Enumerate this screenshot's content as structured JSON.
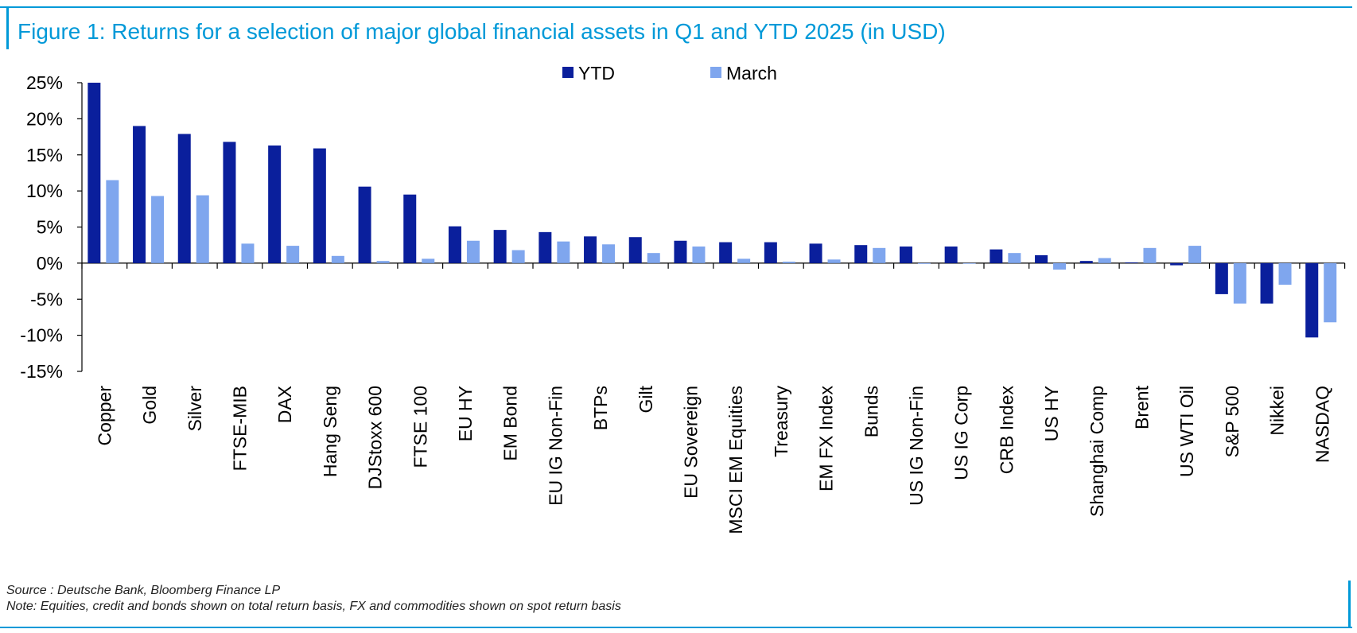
{
  "title": "Figure 1: Returns for a selection of major global financial assets in Q1 and YTD 2025 (in USD)",
  "source": "Source : Deutsche Bank, Bloomberg Finance LP",
  "note": "Note: Equities, credit and bonds shown on total return basis, FX and commodities shown on spot return basis",
  "colors": {
    "accent": "#0099d8",
    "ytd": "#0a1f9c",
    "march": "#7fa6ee"
  },
  "chart_data": {
    "type": "bar",
    "title": "",
    "xlabel": "",
    "ylabel": "",
    "ylim": [
      -15,
      25
    ],
    "yticks": [
      25,
      20,
      15,
      10,
      5,
      0,
      -5,
      -10,
      -15
    ],
    "ytick_labels": [
      "25%",
      "20%",
      "15%",
      "10%",
      "5%",
      "0%",
      "-5%",
      "-10%",
      "-15%"
    ],
    "legend_position": "top-center",
    "grid": false,
    "categories": [
      "Copper",
      "Gold",
      "Silver",
      "FTSE-MIB",
      "DAX",
      "Hang Seng",
      "DJStoxx 600",
      "FTSE 100",
      "EU HY",
      "EM Bond",
      "EU IG Non-Fin",
      "BTPs",
      "Gilt",
      "EU Sovereign",
      "MSCI EM Equities",
      "Treasury",
      "EM FX Index",
      "Bunds",
      "US IG Non-Fin",
      "US IG Corp",
      "CRB Index",
      "US HY",
      "Shanghai Comp",
      "Brent",
      "US WTI Oil",
      "S&P 500",
      "Nikkei",
      "NASDAQ"
    ],
    "series": [
      {
        "name": "YTD",
        "color": "#0a1f9c",
        "values": [
          25.0,
          19.0,
          17.9,
          16.8,
          16.3,
          15.9,
          10.6,
          9.5,
          5.1,
          4.6,
          4.3,
          3.7,
          3.6,
          3.1,
          2.9,
          2.9,
          2.7,
          2.5,
          2.3,
          2.3,
          1.9,
          1.1,
          0.3,
          0.1,
          -0.3,
          -4.3,
          -5.6,
          -10.3
        ]
      },
      {
        "name": "March",
        "color": "#7fa6ee",
        "values": [
          11.5,
          9.3,
          9.4,
          2.7,
          2.4,
          1.0,
          0.3,
          0.6,
          3.1,
          1.8,
          3.0,
          2.6,
          1.4,
          2.3,
          0.6,
          0.2,
          0.5,
          2.1,
          -0.1,
          0.0,
          1.4,
          -0.9,
          0.7,
          2.1,
          2.4,
          -5.6,
          -3.0,
          -8.2
        ]
      }
    ]
  }
}
